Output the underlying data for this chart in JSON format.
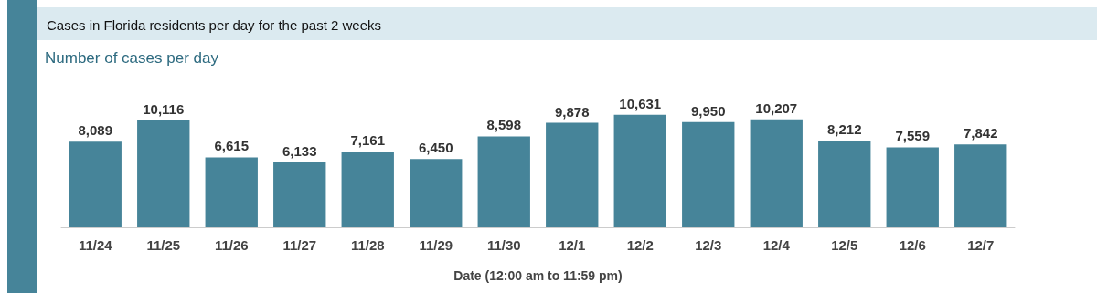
{
  "chart_data": {
    "type": "bar",
    "title": "Cases in Florida residents per day for the past 2 weeks",
    "subtitle": "Number of cases per day",
    "xlabel": "Date (12:00 am to 11:59 pm)",
    "categories": [
      "11/24",
      "11/25",
      "11/26",
      "11/27",
      "11/28",
      "11/29",
      "11/30",
      "12/1",
      "12/2",
      "12/3",
      "12/4",
      "12/5",
      "12/6",
      "12/7"
    ],
    "values": [
      8089,
      10116,
      6615,
      6133,
      7161,
      6450,
      8598,
      9878,
      10631,
      9950,
      10207,
      8212,
      7559,
      7842
    ],
    "value_labels": [
      "8,089",
      "10,116",
      "6,615",
      "6,133",
      "7,161",
      "6,450",
      "8,598",
      "9,878",
      "10,631",
      "9,950",
      "10,207",
      "8,212",
      "7,559",
      "7,842"
    ],
    "color": "#468499"
  }
}
